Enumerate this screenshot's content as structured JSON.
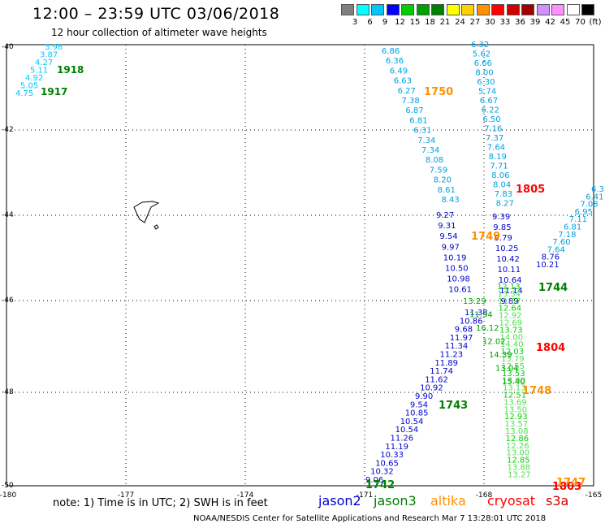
{
  "title": "12:00 – 23:59 UTC 03/06/2018",
  "subtitle": "12 hour collection of altimeter wave heights",
  "legend": {
    "levels": [
      "3",
      "6",
      "9",
      "12",
      "15",
      "18",
      "21",
      "24",
      "27",
      "30",
      "33",
      "36",
      "39",
      "42",
      "45",
      "70",
      "(ft)"
    ],
    "colors": [
      "#808080",
      "#00ffff",
      "#00c8ff",
      "#0000ff",
      "#00d000",
      "#00a000",
      "#008000",
      "#ffff00",
      "#ffd000",
      "#ff9000",
      "#ff0000",
      "#d00000",
      "#a00000",
      "#d090ff",
      "#ff90ff",
      "#ffffff",
      "#000000"
    ]
  },
  "axes": {
    "lat_labels": [
      "-40",
      "-42",
      "-44",
      "-46",
      "-48",
      "-50"
    ],
    "lon_labels": [
      "-180",
      "-177",
      "-174",
      "-171",
      "-168",
      "-165"
    ]
  },
  "tracks": {
    "track1918": {
      "label": "1918",
      "color": "#008000",
      "values": [
        "3.98",
        "3.87",
        "4.27",
        "5.11",
        "4.92",
        "5.05",
        "4.75"
      ],
      "label2": "1917"
    },
    "trackA": {
      "values": [
        "6.86",
        "6.36",
        "6.49",
        "6.63",
        "6.27",
        "7.38",
        "6.87",
        "6.81",
        "6.31",
        "7.34",
        "7.34",
        "8.08",
        "7.59",
        "8.20",
        "8.61",
        "8.43"
      ]
    },
    "trackB": {
      "values": [
        "6.32",
        "5.62",
        "6.66",
        "8.00",
        "6.30",
        "5.74",
        "6.67",
        "6.22",
        "6.50",
        "7.16",
        "7.37",
        "7.64",
        "8.19",
        "7.71",
        "8.06",
        "8.04",
        "7.83",
        "8.27"
      ]
    },
    "trackC": {
      "values": [
        "9.27",
        "9.31",
        "9.54",
        "9.97",
        "10.19",
        "10.50",
        "10.98",
        "10.61"
      ]
    },
    "trackD": {
      "values": [
        "9.39",
        "9.85",
        "9.79",
        "10.25",
        "10.42",
        "10.11",
        "10.64",
        "11.14",
        "9.89"
      ]
    },
    "trackE": {
      "values": [
        "6.3",
        "6.41",
        "7.08",
        "6.95",
        "7.11",
        "6.81",
        "7.18",
        "7.60",
        "7.64",
        "8.76",
        "10.21"
      ]
    },
    "trackF": {
      "values": [
        "11.38",
        "10.86",
        "9.68",
        "11.97",
        "11.34",
        "11.23",
        "11.89",
        "11.74",
        "11.62",
        "10.92",
        "9.90",
        "9.54",
        "10.85",
        "10.54",
        "10.54",
        "11.26",
        "11.19",
        "10.33",
        "10.65",
        "10.32",
        "9.06"
      ]
    },
    "trackG": {
      "values": [
        "12.13",
        "13.34",
        "11.57",
        "12.64",
        "12.92",
        "12.69",
        "13.73",
        "14.00",
        "14.40",
        "12.03",
        "13.79",
        "12.55",
        "13.53",
        "13.00",
        "13.13",
        "12.51",
        "13.69",
        "13.50",
        "12.93",
        "13.57",
        "13.08",
        "12.86",
        "12.26",
        "13.00",
        "12.85",
        "13.88",
        "13.27"
      ]
    },
    "trackH": {
      "values": [
        "13.29",
        "11.94",
        "16.12",
        "12.02",
        "14.39",
        "13.04",
        "15.40"
      ]
    },
    "labels": [
      {
        "text": "1750",
        "color": "#ff9000"
      },
      {
        "text": "1805",
        "color": "#ff0000"
      },
      {
        "text": "1749",
        "color": "#ff9000"
      },
      {
        "text": "1744",
        "color": "#008000"
      },
      {
        "text": "1804",
        "color": "#ff0000"
      },
      {
        "text": "1748",
        "color": "#ff9000"
      },
      {
        "text": "1743",
        "color": "#008000"
      },
      {
        "text": "1742",
        "color": "#008000"
      },
      {
        "text": "1803",
        "color": "#ff0000"
      },
      {
        "text": "1747",
        "color": "#ff9000"
      }
    ]
  },
  "note": "note:  1) Time is in UTC;  2) SWH is in feet",
  "satellites": [
    {
      "name": "jason2",
      "color": "#0000d0"
    },
    {
      "name": "jason3",
      "color": "#008000"
    },
    {
      "name": "altika",
      "color": "#ff9000"
    },
    {
      "name": "cryosat",
      "color": "#ff0000"
    },
    {
      "name": "s3a",
      "color": "#d00000"
    }
  ],
  "footer": "NOAA/NESDIS Center for Satellite Applications and Research    Mar  7 13:28:01 UTC 2018"
}
